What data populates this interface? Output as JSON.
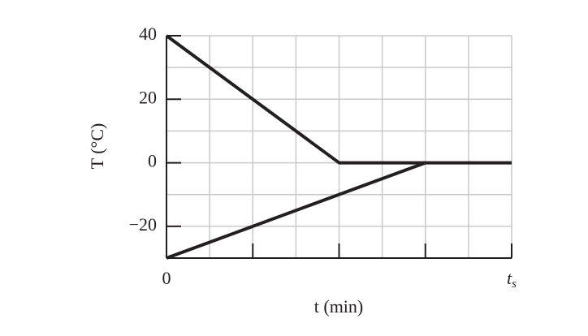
{
  "chart_data": {
    "type": "line",
    "xlabel": "t (min)",
    "ylabel": "T (°C)",
    "xlim": [
      0,
      8
    ],
    "ylim": [
      -30,
      40
    ],
    "xticks": [
      0,
      {
        "value": 8,
        "label": "t",
        "subscript": "s"
      }
    ],
    "xtick_marks": [
      2,
      4,
      6
    ],
    "yticks": [
      40,
      20,
      0,
      {
        "value": -20,
        "label": "−20"
      }
    ],
    "xgrid": [
      1,
      2,
      3,
      4,
      5,
      6,
      7,
      8
    ],
    "ygrid": [
      30,
      20,
      10,
      0,
      -10,
      -20,
      -30,
      40
    ],
    "grid": true,
    "series": [
      {
        "color": "#231f20",
        "x": [
          0,
          4,
          8
        ],
        "values": [
          40,
          0,
          0
        ]
      },
      {
        "color": "#231f20",
        "x": [
          0,
          6
        ],
        "values": [
          -30,
          0
        ]
      }
    ]
  }
}
